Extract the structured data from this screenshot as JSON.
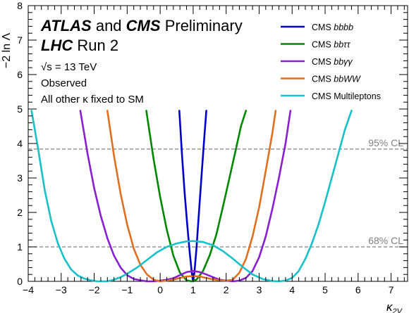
{
  "chart_data": {
    "type": "line",
    "xlabel": "κ",
    "xlabel_sub": "2V",
    "ylabel": "−2 ln Λ",
    "xlim": [
      -4,
      7.5
    ],
    "ylim": [
      0,
      8
    ],
    "xticks": [
      "−4",
      "−3",
      "−2",
      "−1",
      "0",
      "1",
      "2",
      "3",
      "4",
      "5",
      "6",
      "7"
    ],
    "yticks": [
      "0",
      "1",
      "2",
      "3",
      "4",
      "5",
      "6",
      "7",
      "8"
    ],
    "annotations": {
      "atlas": "ATLAS",
      "and": "and",
      "cms": "CMS",
      "preliminary": "Preliminary",
      "lhc": "LHC",
      "run": "Run 2",
      "sqrt_s": "√s",
      "energy": "= 13 TeV",
      "observed": "Observed",
      "fixed": "All other κ fixed to SM"
    },
    "reference_lines": [
      {
        "label": "95% CL",
        "y": 3.84,
        "color": "#808080"
      },
      {
        "label": "68% CL",
        "y": 1.0,
        "color": "#808080"
      }
    ],
    "series": [
      {
        "name": "bbbb",
        "legend_prefix": "CMS ",
        "color": "#0000cc",
        "segments": [
          [
            [
              0.58,
              4.95
            ],
            [
              0.66,
              3.7
            ],
            [
              0.74,
              2.6
            ],
            [
              0.82,
              1.65
            ],
            [
              0.9,
              0.8
            ],
            [
              0.97,
              0.15
            ],
            [
              1.0,
              0.0
            ]
          ],
          [
            [
              1.0,
              0.0
            ],
            [
              1.04,
              0.28
            ],
            [
              1.1,
              0.95
            ],
            [
              1.18,
              2.05
            ],
            [
              1.26,
              3.15
            ],
            [
              1.34,
              4.2
            ],
            [
              1.4,
              4.95
            ]
          ]
        ]
      },
      {
        "name": "bbττ",
        "legend_prefix": "CMS ",
        "color": "#008800",
        "points": [
          [
            -0.42,
            4.95
          ],
          [
            -0.2,
            3.55
          ],
          [
            0.0,
            2.45
          ],
          [
            0.2,
            1.5
          ],
          [
            0.4,
            0.75
          ],
          [
            0.6,
            0.25
          ],
          [
            0.8,
            0.03
          ],
          [
            0.95,
            0.0
          ],
          [
            1.1,
            0.05
          ],
          [
            1.3,
            0.3
          ],
          [
            1.5,
            0.75
          ],
          [
            1.7,
            1.35
          ],
          [
            1.9,
            2.15
          ],
          [
            2.1,
            3.0
          ],
          [
            2.3,
            3.85
          ],
          [
            2.45,
            4.5
          ],
          [
            2.6,
            4.95
          ]
        ]
      },
      {
        "name": "bbγγ",
        "legend_prefix": "CMS ",
        "color": "#8a1fd1",
        "points": [
          [
            -2.42,
            4.95
          ],
          [
            -2.2,
            3.7
          ],
          [
            -2.0,
            2.7
          ],
          [
            -1.8,
            1.9
          ],
          [
            -1.6,
            1.25
          ],
          [
            -1.4,
            0.75
          ],
          [
            -1.2,
            0.4
          ],
          [
            -1.0,
            0.18
          ],
          [
            -0.8,
            0.07
          ],
          [
            -0.6,
            0.03
          ],
          [
            -0.4,
            0.0
          ],
          [
            -0.2,
            0.0
          ],
          [
            0.0,
            0.02
          ],
          [
            0.2,
            0.05
          ],
          [
            0.4,
            0.09
          ],
          [
            0.6,
            0.18
          ],
          [
            0.8,
            0.27
          ],
          [
            1.0,
            0.3
          ],
          [
            1.2,
            0.27
          ],
          [
            1.4,
            0.2
          ],
          [
            1.6,
            0.12
          ],
          [
            1.8,
            0.05
          ],
          [
            2.0,
            0.02
          ],
          [
            2.2,
            0.0
          ],
          [
            2.4,
            0.02
          ],
          [
            2.6,
            0.1
          ],
          [
            2.8,
            0.3
          ],
          [
            3.0,
            0.7
          ],
          [
            3.2,
            1.3
          ],
          [
            3.4,
            2.1
          ],
          [
            3.6,
            3.0
          ],
          [
            3.8,
            4.0
          ],
          [
            3.95,
            4.95
          ]
        ]
      },
      {
        "name": "bbWW",
        "legend_prefix": "CMS ",
        "color": "#e07020",
        "points": [
          [
            -1.6,
            4.95
          ],
          [
            -1.4,
            3.65
          ],
          [
            -1.2,
            2.55
          ],
          [
            -1.0,
            1.65
          ],
          [
            -0.8,
            0.95
          ],
          [
            -0.6,
            0.48
          ],
          [
            -0.4,
            0.2
          ],
          [
            -0.2,
            0.05
          ],
          [
            0.0,
            0.0
          ],
          [
            0.2,
            0.02
          ],
          [
            0.4,
            0.05
          ],
          [
            0.6,
            0.1
          ],
          [
            0.8,
            0.14
          ],
          [
            1.0,
            0.15
          ],
          [
            1.2,
            0.14
          ],
          [
            1.4,
            0.1
          ],
          [
            1.6,
            0.06
          ],
          [
            1.8,
            0.03
          ],
          [
            2.0,
            0.02
          ],
          [
            2.2,
            0.05
          ],
          [
            2.4,
            0.25
          ],
          [
            2.6,
            0.65
          ],
          [
            2.8,
            1.3
          ],
          [
            3.0,
            2.15
          ],
          [
            3.2,
            3.2
          ],
          [
            3.4,
            4.3
          ],
          [
            3.5,
            4.95
          ]
        ]
      },
      {
        "name": "Multileptons",
        "legend_prefix": "CMS ",
        "color": "#18c0c8",
        "points": [
          [
            -3.9,
            4.95
          ],
          [
            -3.7,
            3.85
          ],
          [
            -3.5,
            2.65
          ],
          [
            -3.3,
            1.75
          ],
          [
            -3.1,
            1.1
          ],
          [
            -2.9,
            0.65
          ],
          [
            -2.7,
            0.35
          ],
          [
            -2.5,
            0.17
          ],
          [
            -2.3,
            0.08
          ],
          [
            -2.1,
            0.03
          ],
          [
            -1.9,
            0.0
          ],
          [
            -1.6,
            0.0
          ],
          [
            -1.4,
            0.05
          ],
          [
            -1.2,
            0.12
          ],
          [
            -1.0,
            0.22
          ],
          [
            -0.7,
            0.4
          ],
          [
            -0.4,
            0.62
          ],
          [
            -0.1,
            0.84
          ],
          [
            0.2,
            1.0
          ],
          [
            0.5,
            1.1
          ],
          [
            0.8,
            1.16
          ],
          [
            1.0,
            1.17
          ],
          [
            1.3,
            1.14
          ],
          [
            1.6,
            1.05
          ],
          [
            1.9,
            0.88
          ],
          [
            2.2,
            0.66
          ],
          [
            2.5,
            0.42
          ],
          [
            2.8,
            0.2
          ],
          [
            3.1,
            0.07
          ],
          [
            3.4,
            0.01
          ],
          [
            3.6,
            0.0
          ],
          [
            3.8,
            0.02
          ],
          [
            4.0,
            0.1
          ],
          [
            4.2,
            0.3
          ],
          [
            4.4,
            0.65
          ],
          [
            4.6,
            1.1
          ],
          [
            4.8,
            1.65
          ],
          [
            5.0,
            2.3
          ],
          [
            5.2,
            3.0
          ],
          [
            5.4,
            3.7
          ],
          [
            5.6,
            4.4
          ],
          [
            5.8,
            4.95
          ]
        ]
      }
    ]
  }
}
